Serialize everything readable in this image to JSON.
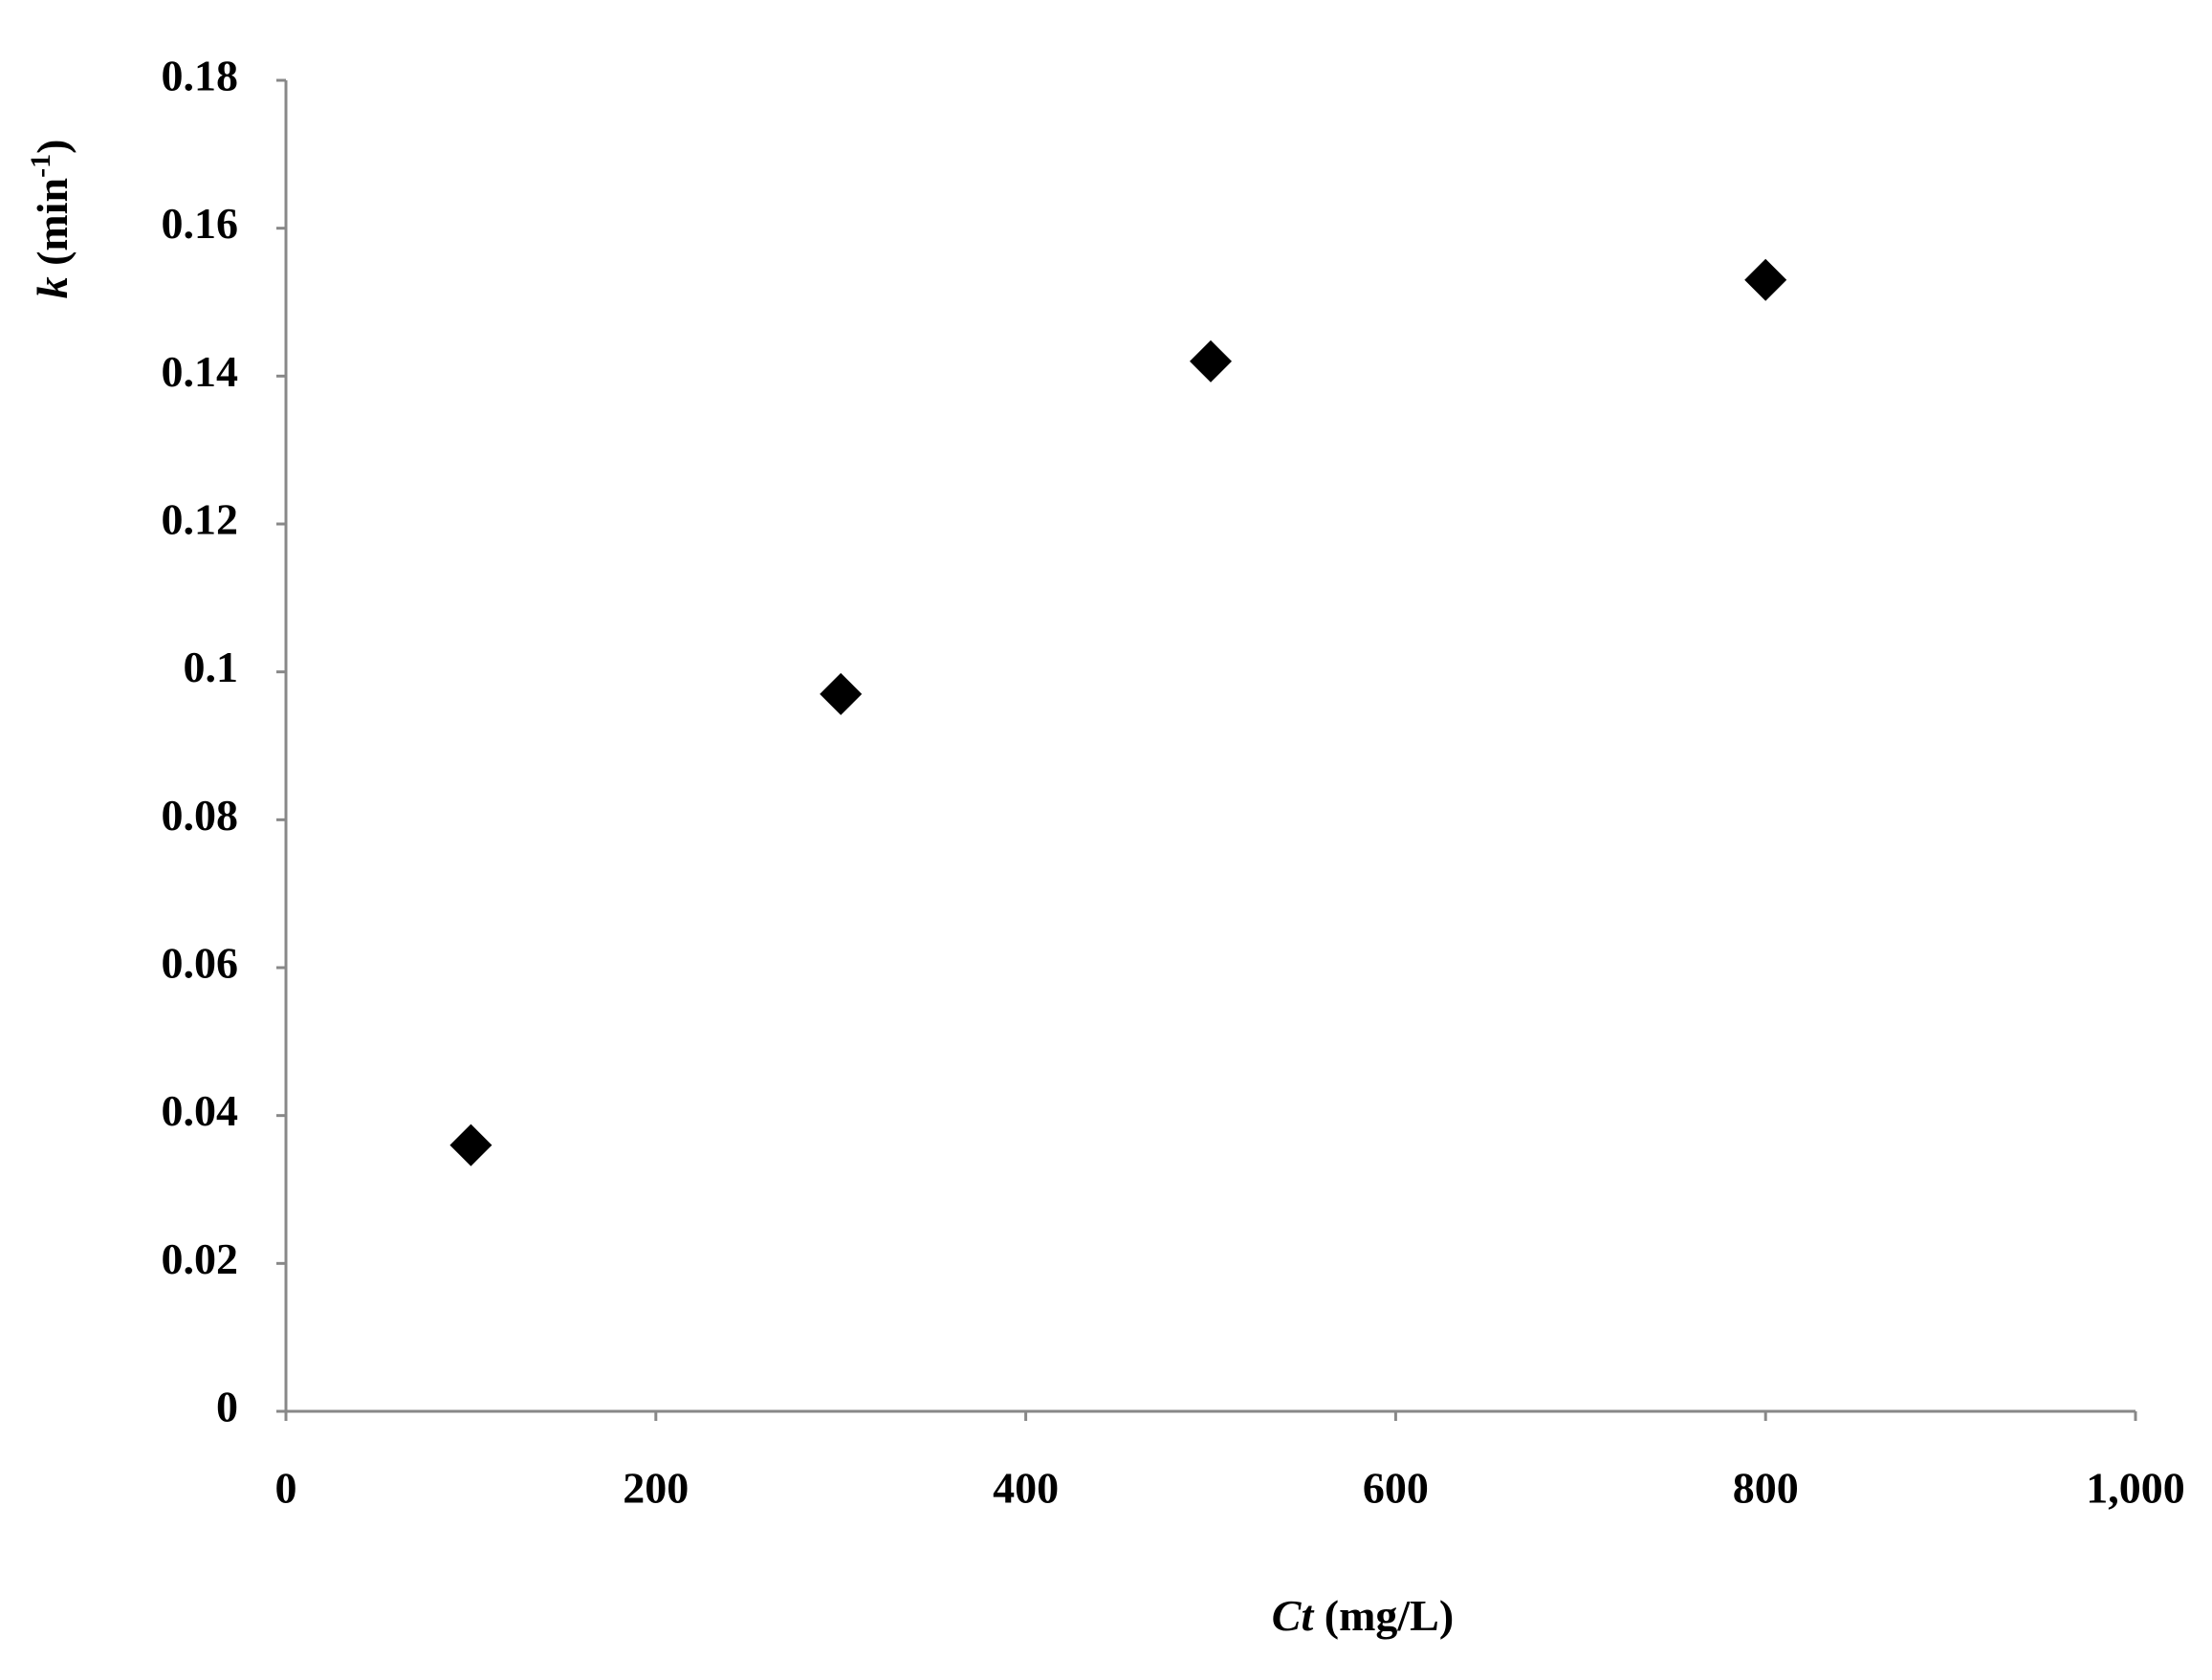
{
  "chart_data": {
    "type": "scatter",
    "x_label": [
      "Ct",
      "(mg/L)"
    ],
    "y_label": [
      "k",
      "(min",
      "-1",
      ")"
    ],
    "series": [
      {
        "color": "#000000",
        "x": [
          100,
          300,
          500,
          800
        ],
        "values": [
          0.036,
          0.097,
          0.142,
          0.153
        ]
      }
    ],
    "xlim": [
      0,
      1000
    ],
    "xticks": [
      0,
      200,
      400,
      600,
      800,
      {
        "value": 1000,
        "label": "1,000"
      }
    ],
    "ylim": [
      0,
      0.18
    ],
    "yticks": [
      0,
      0.02,
      0.04,
      0.06,
      0.08,
      0.1,
      0.12,
      0.14,
      0.16,
      0.18
    ],
    "grid": false
  }
}
